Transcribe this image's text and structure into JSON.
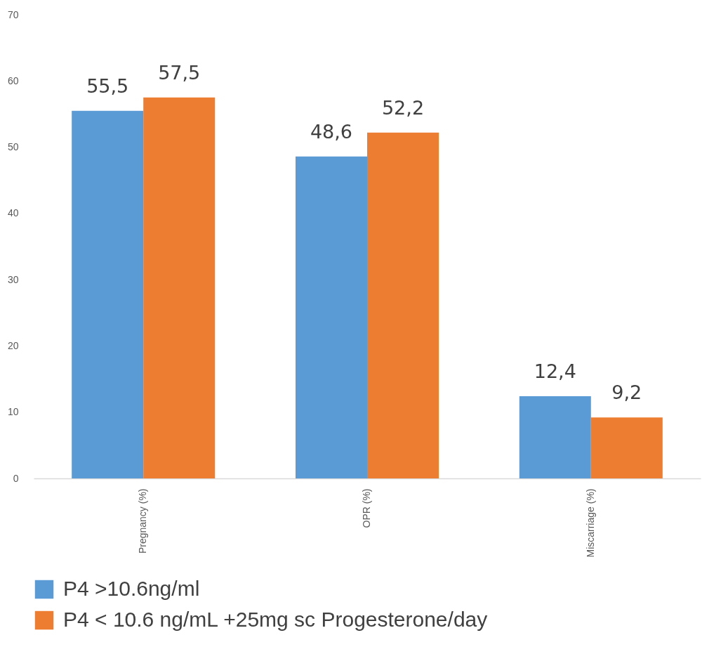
{
  "chart_data": {
    "type": "bar",
    "categories": [
      "Pregnancy (%)",
      "OPR (%)",
      "Miscarriage (%)"
    ],
    "series": [
      {
        "name": "P4 >10.6ng/ml",
        "color": "#5b9bd5",
        "values": [
          55.5,
          48.6,
          12.4
        ],
        "value_labels": [
          "55,5",
          "48,6",
          "12,4"
        ]
      },
      {
        "name": "P4 < 10.6 ng/mL +25mg sc Progesterone/day",
        "color": "#ed7d31",
        "values": [
          57.5,
          52.2,
          9.2
        ],
        "value_labels": [
          "57,5",
          "52,2",
          "9,2"
        ]
      }
    ],
    "ylim": [
      0,
      70
    ],
    "yticks": [
      0,
      10,
      20,
      30,
      40,
      50,
      60,
      70
    ],
    "legend": "bottom"
  }
}
